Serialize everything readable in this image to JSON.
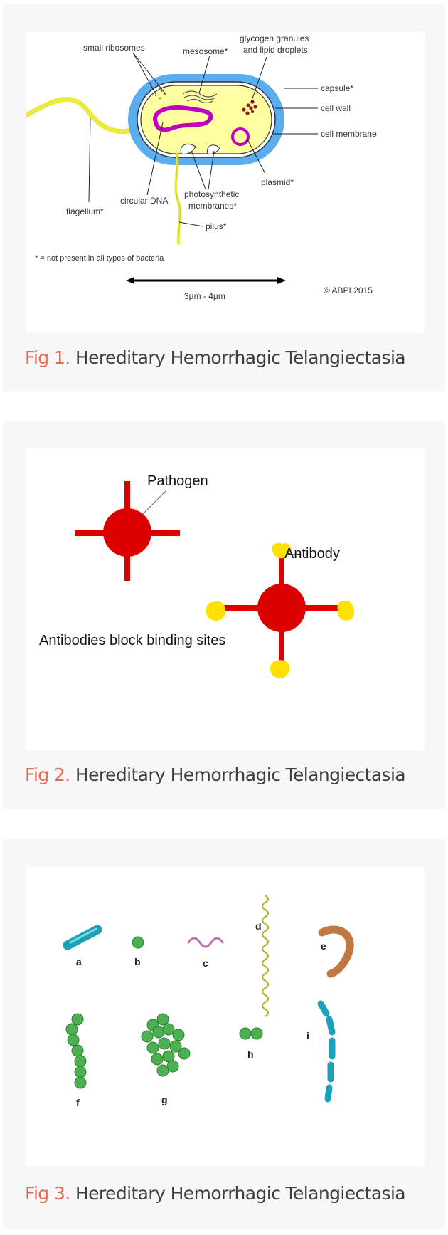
{
  "figures": [
    {
      "number": "Fig 1.",
      "title": "Hereditary Hemorrhagic Telangiectasia",
      "labels": {
        "small_ribosomes": "small ribosomes",
        "mesosome": "mesosome*",
        "glycogen_1": "glycogen granules",
        "glycogen_2": "and lipid droplets",
        "capsule": "capsule*",
        "cell_wall": "cell wall",
        "cell_membrane": "cell membrane",
        "plasmid": "plasmid*",
        "photosynthetic_1": "photosynthetic",
        "photosynthetic_2": "membranes*",
        "circular_dna": "circular DNA",
        "flagellum": "flagellum*",
        "pilus": "pilus*",
        "footnote": "* = not present in all types of bacteria",
        "scale": "3µm - 4µm",
        "copyright": "© ABPI 2015"
      },
      "colors": {
        "capsule": "#5aaef0",
        "cytoplasm": "#ffffa0",
        "dna": "#c000c0",
        "flagellum": "#eaea40",
        "granules": "#8b1a1a"
      }
    },
    {
      "number": "Fig 2.",
      "title": "Hereditary Hemorrhagic Telangiectasia",
      "labels": {
        "pathogen": "Pathogen",
        "antibody": "Antibody",
        "block": "Antibodies block binding sites"
      },
      "colors": {
        "pathogen": "#dd0000",
        "antibody": "#ffe000"
      }
    },
    {
      "number": "Fig 3.",
      "title": "Hereditary Hemorrhagic Telangiectasia",
      "labels": [
        "a",
        "b",
        "c",
        "d",
        "e",
        "f",
        "g",
        "h",
        "i"
      ],
      "colors": {
        "rod": "#1aa0b8",
        "coccus": "#4caf50",
        "spirillum": "#c070b0",
        "spirochete": "#b0b030",
        "vibrio": "#c07840"
      }
    }
  ]
}
